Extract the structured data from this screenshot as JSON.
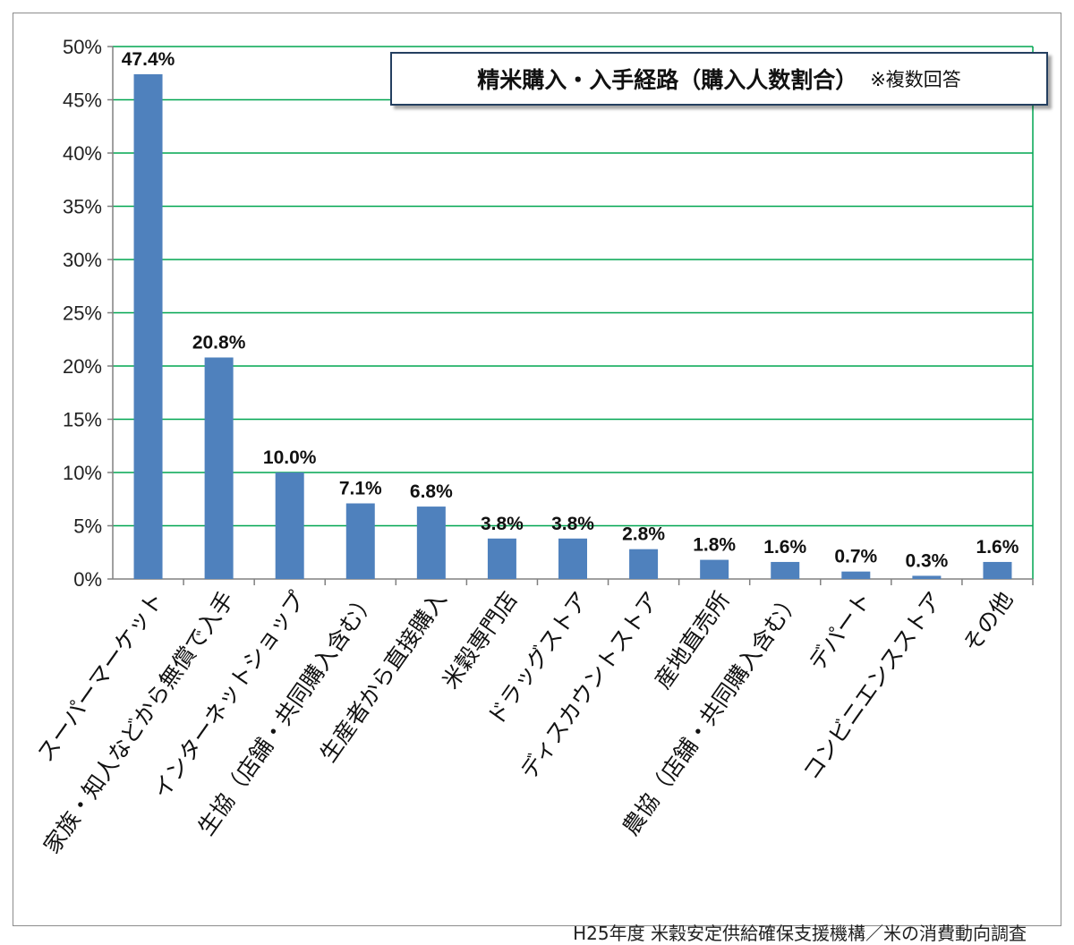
{
  "chart_data": {
    "type": "bar",
    "title": "精米購入・入手経路（購入人数割合）",
    "title_note": "※複数回答",
    "source": "H25年度 米穀安定供給確保支援機構／米の消費動向調査",
    "categories": [
      "スーパーマーケット",
      "家族・知人などから無償で入手",
      "インターネットショップ",
      "生協（店舗・共同購入含む）",
      "生産者から直接購入",
      "米穀専門店",
      "ドラッグストア",
      "ディスカウントストア",
      "産地直売所",
      "農協（店舗・共同購入含む）",
      "デパート",
      "コンビニエンスストア",
      "その他"
    ],
    "values": [
      47.4,
      20.8,
      10.0,
      7.1,
      6.8,
      3.8,
      3.8,
      2.8,
      1.8,
      1.6,
      0.7,
      0.3,
      1.6
    ],
    "value_labels": [
      "47.4%",
      "20.8%",
      "10.0%",
      "7.1%",
      "6.8%",
      "3.8%",
      "3.8%",
      "2.8%",
      "1.8%",
      "1.6%",
      "0.7%",
      "0.3%",
      "1.6%"
    ],
    "y_ticks": [
      0,
      5,
      10,
      15,
      20,
      25,
      30,
      35,
      40,
      45,
      50
    ],
    "y_tick_labels": [
      "0%",
      "5%",
      "10%",
      "15%",
      "20%",
      "25%",
      "30%",
      "35%",
      "40%",
      "45%",
      "50%"
    ],
    "ylim": [
      0,
      50
    ],
    "grid": true,
    "legend": "none",
    "colors": {
      "bar": "#4f81bd",
      "grid": "#00a651",
      "axis": "#808080"
    }
  }
}
